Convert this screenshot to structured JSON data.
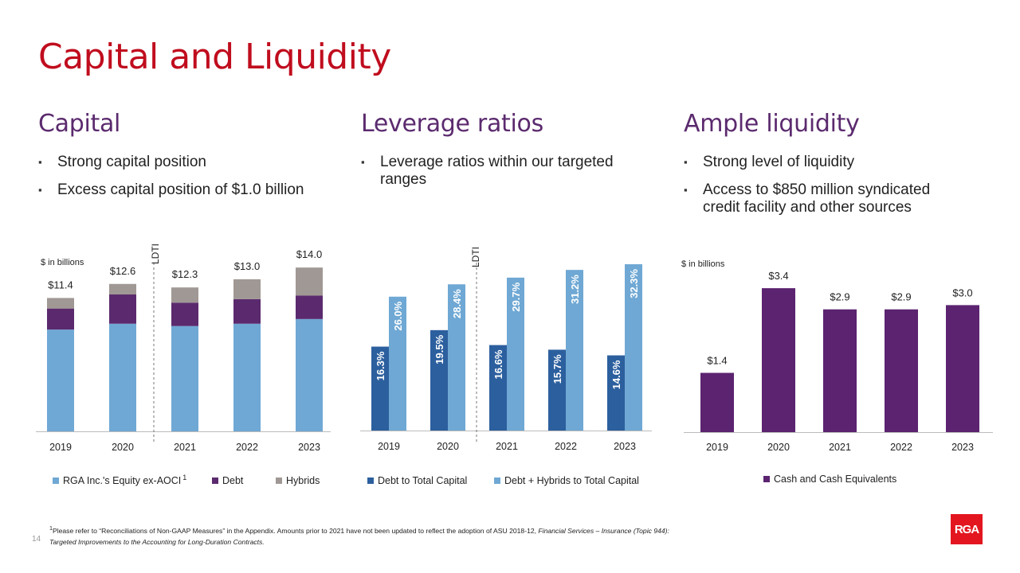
{
  "title": "Capital and Liquidity",
  "columns": [
    {
      "heading": "Capital",
      "bullets": [
        "Strong capital position",
        "Excess capital position of $1.0 billion"
      ]
    },
    {
      "heading": "Leverage ratios",
      "bullets": [
        "Leverage ratios within our targeted ranges"
      ]
    },
    {
      "heading": "Ample liquidity",
      "bullets": [
        "Strong level of liquidity",
        "Access to $850 million syndicated credit facility and other sources"
      ]
    }
  ],
  "chart_data": [
    {
      "type": "bar",
      "stacked": true,
      "unit_label": "$ in billions",
      "divider_label": "LDTI",
      "categories": [
        "2019",
        "2020",
        "2021",
        "2022",
        "2023"
      ],
      "totals": [
        "$11.4",
        "$12.6",
        "$12.3",
        "$13.0",
        "$14.0"
      ],
      "series": [
        {
          "name": "RGA Inc.'s Equity ex-AOCI",
          "values": [
            8.7,
            9.2,
            9.0,
            9.2,
            9.6
          ],
          "color": "#6fa8d4"
        },
        {
          "name": "Debt",
          "values": [
            1.8,
            2.5,
            2.0,
            2.1,
            2.0
          ],
          "color": "#5b2a6e"
        },
        {
          "name": "Hybrids",
          "values": [
            0.9,
            0.9,
            1.3,
            1.7,
            2.4
          ],
          "color": "#a09894"
        }
      ],
      "legend_footnote_mark": "1",
      "grid": false,
      "legend_position": "bottom"
    },
    {
      "type": "bar",
      "stacked": false,
      "divider_label": "LDTI",
      "categories": [
        "2019",
        "2020",
        "2021",
        "2022",
        "2023"
      ],
      "series": [
        {
          "name": "Debt to Total Capital",
          "values": [
            16.3,
            19.5,
            16.6,
            15.7,
            14.6
          ],
          "labels": [
            "16.3%",
            "19.5%",
            "16.6%",
            "15.7%",
            "14.6%"
          ],
          "color": "#2c5f9e"
        },
        {
          "name": "Debt + Hybrids to Total Capital",
          "values": [
            26.0,
            28.4,
            29.7,
            31.2,
            32.3
          ],
          "labels": [
            "26.0%",
            "28.4%",
            "29.7%",
            "31.2%",
            "32.3%"
          ],
          "color": "#6fa8d4"
        }
      ],
      "grid": false,
      "legend_position": "bottom"
    },
    {
      "type": "bar",
      "stacked": false,
      "unit_label": "$ in billions",
      "categories": [
        "2019",
        "2020",
        "2021",
        "2022",
        "2023"
      ],
      "series": [
        {
          "name": "Cash and Cash Equivalents",
          "values": [
            1.4,
            3.4,
            2.9,
            2.9,
            3.0
          ],
          "labels": [
            "$1.4",
            "$3.4",
            "$2.9",
            "$2.9",
            "$3.0"
          ],
          "color": "#5b2370"
        }
      ],
      "grid": false,
      "legend_position": "bottom"
    }
  ],
  "footnote": {
    "mark": "1",
    "line1_text": "Please refer to “Reconciliations  of Non-GAAP Measures” in the Appendix. Amounts prior to 2021 have not been updated to reflect the adoption of ASU 2018-12, ",
    "line1_italic": "Financial Services – Insurance  (Topic 944):",
    "line2_italic": "Targeted Improvements  to the Accounting for Long-Duration Contracts."
  },
  "page_number": "14",
  "logo_text": "RGA"
}
